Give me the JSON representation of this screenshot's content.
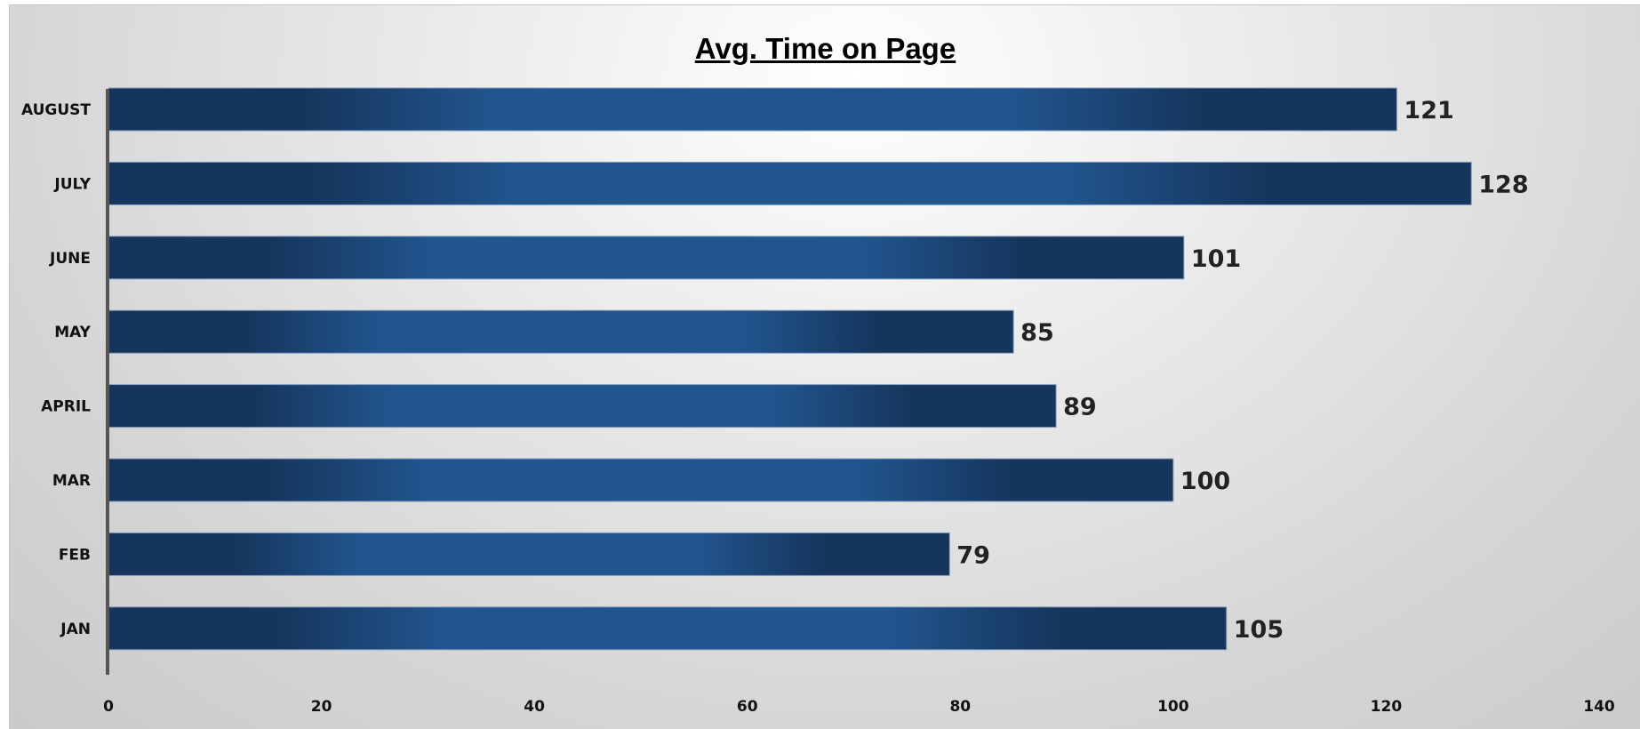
{
  "chart_data": {
    "type": "bar",
    "orientation": "horizontal",
    "title": "Avg. Time on Page",
    "categories": [
      "AUGUST",
      "JULY",
      "JUNE",
      "MAY",
      "APRIL",
      "MAR",
      "FEB",
      "JAN"
    ],
    "values": [
      121,
      128,
      101,
      85,
      89,
      100,
      79,
      105
    ],
    "xticks": [
      "0",
      "20",
      "40",
      "60",
      "80",
      "100",
      "120",
      "140"
    ],
    "xlim": [
      0,
      140
    ],
    "xlabel": "",
    "ylabel": "",
    "grid": false,
    "legend": "none",
    "colors": {
      "bar_dark": "#16355c",
      "bar_light": "#21558e",
      "axis": "#555555"
    }
  }
}
